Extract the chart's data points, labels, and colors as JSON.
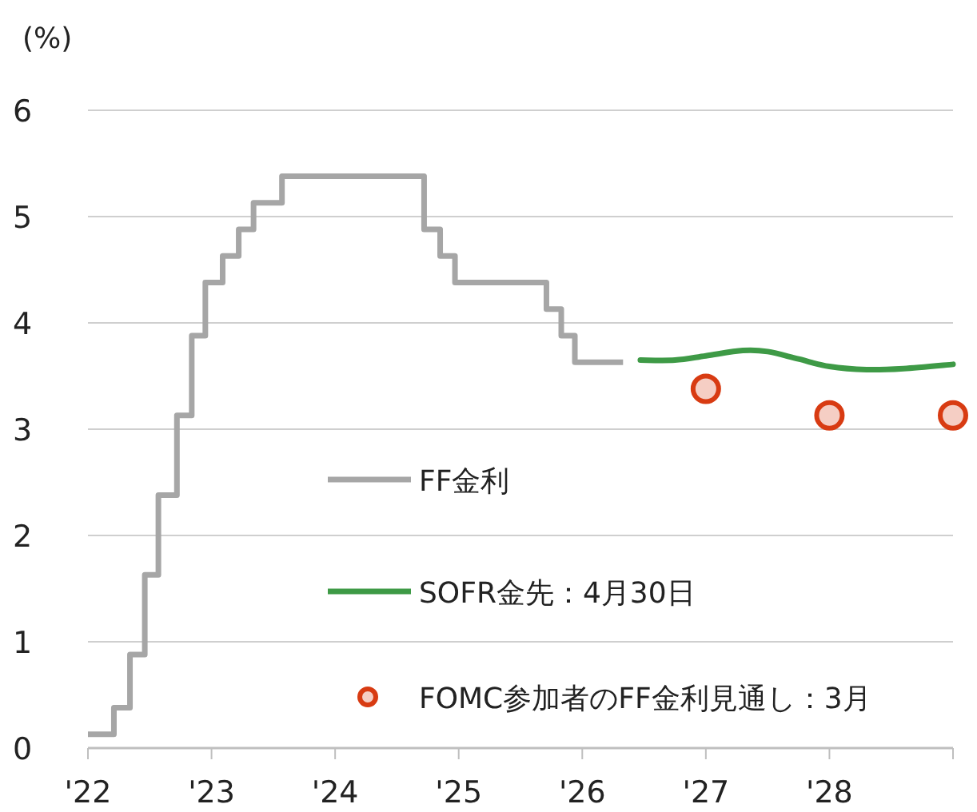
{
  "chart_data": {
    "type": "line",
    "ylabel": "(%)",
    "xlim": [
      2022,
      2029
    ],
    "xticks": [
      {
        "value": 2022,
        "label": "'22"
      },
      {
        "value": 2023,
        "label": "'23"
      },
      {
        "value": 2024,
        "label": "'24"
      },
      {
        "value": 2025,
        "label": "'25"
      },
      {
        "value": 2026,
        "label": "'26"
      },
      {
        "value": 2027,
        "label": "'27"
      },
      {
        "value": 2028,
        "label": "'28"
      },
      {
        "value": 2029,
        "label": null
      }
    ],
    "ylim": [
      0,
      6
    ],
    "yticks": [
      0,
      1,
      2,
      3,
      4,
      5,
      6
    ],
    "grid": "y",
    "legend": "bottom",
    "series": [
      {
        "name": "FF金利",
        "type": "step",
        "color": "#a6a6a6",
        "x": [
          2022.0,
          2022.21,
          2022.34,
          2022.46,
          2022.57,
          2022.72,
          2022.84,
          2022.95,
          2023.09,
          2023.22,
          2023.34,
          2023.57,
          2024.72,
          2024.85,
          2024.97,
          2025.71,
          2025.83,
          2025.94,
          2026.33
        ],
        "values": [
          0.13,
          0.38,
          0.88,
          1.63,
          2.38,
          3.13,
          3.88,
          4.38,
          4.63,
          4.88,
          5.13,
          5.38,
          4.88,
          4.63,
          4.38,
          4.13,
          3.88,
          3.63,
          3.63
        ]
      },
      {
        "name": "SOFR金先：4月30日",
        "color": "#3e9a46",
        "x": [
          2026.47,
          2026.75,
          2027.0,
          2027.3,
          2027.5,
          2027.75,
          2028.0,
          2028.3,
          2028.6,
          2029.0
        ],
        "values": [
          3.65,
          3.65,
          3.69,
          3.74,
          3.73,
          3.66,
          3.59,
          3.56,
          3.57,
          3.61
        ]
      },
      {
        "name": "FOMC参加者のFF金利見通し：3月",
        "type": "scatter",
        "marker": "circle",
        "color": "#d83b12",
        "x": [
          2027.0,
          2028.0,
          2029.0
        ],
        "values": [
          3.38,
          3.13,
          3.13
        ]
      }
    ]
  }
}
